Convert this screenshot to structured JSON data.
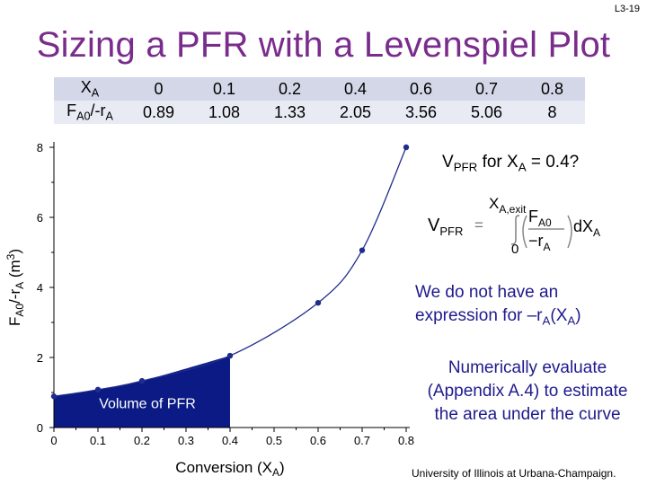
{
  "slide_number": "L3-19",
  "title": "Sizing a PFR with a Levenspiel Plot",
  "table": {
    "row1_label": "XA",
    "row2_label": "FA0/-rA",
    "xa": [
      "0",
      "0.1",
      "0.2",
      "0.4",
      "0.6",
      "0.7",
      "0.8"
    ],
    "fa0_ra": [
      "0.89",
      "1.08",
      "1.33",
      "2.05",
      "3.56",
      "5.06",
      "8"
    ]
  },
  "question": "VPFR for XA = 0.4?",
  "equation": {
    "lhs": "VPFR",
    "upper_limit": "XA,exit",
    "lower_limit": "0",
    "numerator": "FA0",
    "denominator": "−rA",
    "differential": "dXA"
  },
  "note1": "We do not have an expression for –rA(XA)",
  "note2": "Numerically evaluate (Appendix A.4) to estimate the area under the curve",
  "footer": "University of Illinois at Urbana-Champaign.",
  "colors": {
    "title": "#7a2c8c",
    "shade": "#0b1a84",
    "curve": "#1f2c8c",
    "note": "#1f1a8c",
    "table_row1": "#d3d7e8",
    "table_row2": "#e9ebf4"
  },
  "chart_data": {
    "type": "line",
    "x": [
      0,
      0.1,
      0.2,
      0.4,
      0.6,
      0.7,
      0.8
    ],
    "y": [
      0.89,
      1.08,
      1.33,
      2.05,
      3.56,
      5.06,
      8
    ],
    "xlabel": "Conversion (XA)",
    "ylabel": "FA0/-rA (m3)",
    "xlim": [
      0,
      0.8
    ],
    "ylim": [
      0,
      8
    ],
    "xticks": [
      "0",
      "0.1",
      "0.2",
      "0.3",
      "0.4",
      "0.5",
      "0.6",
      "0.7",
      "0.8"
    ],
    "yticks": [
      "0",
      "2",
      "4",
      "6",
      "8"
    ],
    "shaded_region": {
      "from": 0,
      "to": 0.4,
      "label": "Volume of PFR"
    },
    "grid": false
  }
}
